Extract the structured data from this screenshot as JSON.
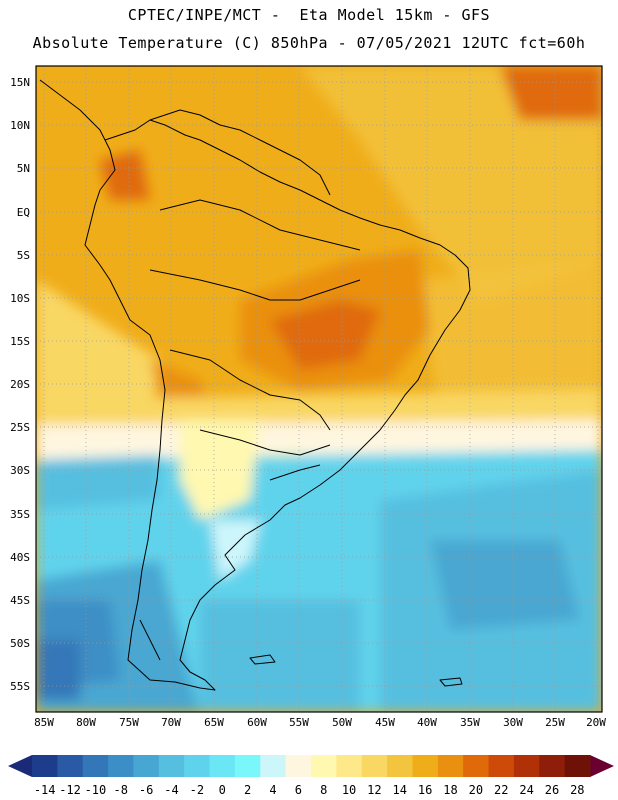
{
  "header": {
    "line1": "CPTEC/INPE/MCT -  Eta Model 15km - GFS",
    "line2": "Absolute Temperature (C) 850hPa - 07/05/2021 12UTC fct=60h"
  },
  "map": {
    "lat_labels": [
      "15N",
      "10N",
      "5N",
      "EQ",
      "5S",
      "10S",
      "15S",
      "20S",
      "25S",
      "30S",
      "35S",
      "40S",
      "45S",
      "50S",
      "55S"
    ],
    "lon_labels": [
      "85W",
      "80W",
      "75W",
      "70W",
      "65W",
      "60W",
      "55W",
      "50W",
      "45W",
      "40W",
      "35W",
      "30W",
      "25W",
      "20W"
    ]
  },
  "colorbar": {
    "values": [
      "-14",
      "-12",
      "-10",
      "-8",
      "-6",
      "-4",
      "-2",
      "0",
      "2",
      "4",
      "6",
      "8",
      "10",
      "12",
      "14",
      "16",
      "18",
      "20",
      "22",
      "24",
      "26",
      "28"
    ],
    "colors": [
      "#1e3c8c",
      "#2a5aa6",
      "#3477b8",
      "#3c8fc6",
      "#48a7d2",
      "#56bfe0",
      "#60d3ec",
      "#6ae6f4",
      "#7af7fb",
      "#cdf6fb",
      "#fff6e0",
      "#fff8b0",
      "#fde98a",
      "#f9d763",
      "#f3c43e",
      "#f0ad1a",
      "#ea9010",
      "#e06a0a",
      "#cd4a08",
      "#b03008",
      "#8e1e0a",
      "#6e1208"
    ],
    "left_arrow_color": "#1a2a78",
    "right_arrow_color": "#6a0030"
  }
}
